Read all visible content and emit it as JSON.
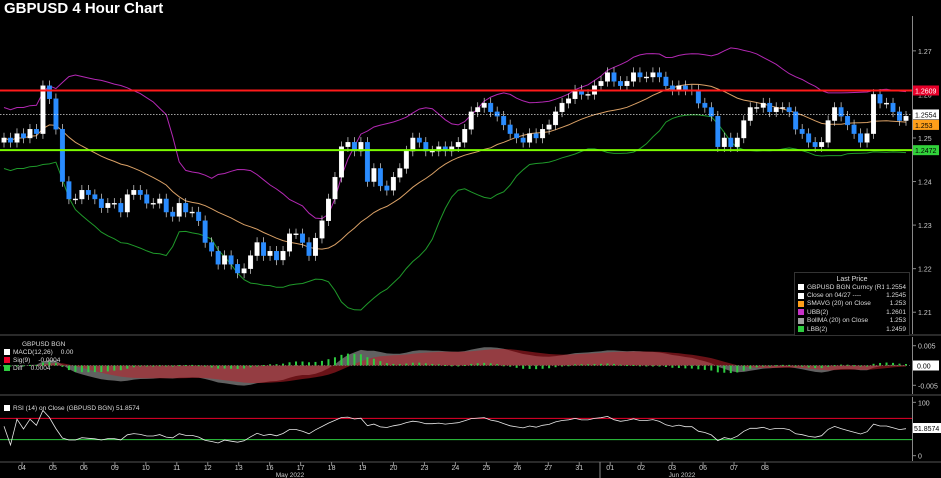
{
  "chart_data": [
    {
      "type": "candlestick",
      "title": "GBPUSD 4 Hour Chart",
      "yticks": [
        "1.27",
        "1.26",
        "1.25",
        "1.24",
        "1.23",
        "1.22",
        "1.21"
      ],
      "ylim": [
        1.205,
        1.278
      ],
      "xticks": [
        "04",
        "05",
        "06",
        "09",
        "10",
        "11",
        "12",
        "13",
        "16",
        "17",
        "18",
        "19",
        "20",
        "23",
        "24",
        "25",
        "26",
        "27",
        "31",
        "01",
        "02",
        "03",
        "06",
        "07",
        "08"
      ],
      "month_labels": [
        "May 2022",
        "Jun 2022"
      ],
      "horizontal_levels": [
        {
          "name": "resistance",
          "value": 1.2609,
          "color": "#ff1a1a"
        },
        {
          "name": "support",
          "value": 1.2472,
          "color": "#7cfc00"
        }
      ],
      "price_tags": [
        {
          "label": "1.2609",
          "value": 1.2609,
          "color": "#e8002a"
        },
        {
          "label": "1.2554",
          "value": 1.2554,
          "color": "#ffffff"
        },
        {
          "label": "1.253",
          "value": 1.253,
          "color": "#ff9f1a"
        },
        {
          "label": "1.2472",
          "value": 1.2472,
          "color": "#31d13a"
        }
      ],
      "close": [
        1.25,
        1.249,
        1.251,
        1.25,
        1.252,
        1.251,
        1.262,
        1.259,
        1.252,
        1.24,
        1.236,
        1.236,
        1.238,
        1.237,
        1.236,
        1.234,
        1.235,
        1.235,
        1.233,
        1.237,
        1.238,
        1.237,
        1.235,
        1.235,
        1.236,
        1.233,
        1.232,
        1.235,
        1.233,
        1.233,
        1.231,
        1.226,
        1.224,
        1.221,
        1.223,
        1.221,
        1.219,
        1.22,
        1.223,
        1.226,
        1.223,
        1.224,
        1.222,
        1.224,
        1.228,
        1.228,
        1.226,
        1.223,
        1.227,
        1.231,
        1.236,
        1.241,
        1.248,
        1.249,
        1.247,
        1.249,
        1.24,
        1.243,
        1.239,
        1.238,
        1.241,
        1.243,
        1.247,
        1.25,
        1.249,
        1.247,
        1.247,
        1.248,
        1.247,
        1.248,
        1.249,
        1.252,
        1.256,
        1.257,
        1.258,
        1.256,
        1.255,
        1.253,
        1.251,
        1.25,
        1.249,
        1.251,
        1.25,
        1.252,
        1.253,
        1.256,
        1.258,
        1.259,
        1.261,
        1.26,
        1.26,
        1.262,
        1.263,
        1.265,
        1.263,
        1.262,
        1.263,
        1.265,
        1.264,
        1.264,
        1.265,
        1.264,
        1.262,
        1.261,
        1.262,
        1.261,
        1.261,
        1.258,
        1.257,
        1.255,
        1.248,
        1.25,
        1.248,
        1.25,
        1.254,
        1.257,
        1.257,
        1.258,
        1.256,
        1.257,
        1.257,
        1.256,
        1.252,
        1.251,
        1.249,
        1.248,
        1.249,
        1.254,
        1.257,
        1.255,
        1.253,
        1.251,
        1.249,
        1.251,
        1.26,
        1.258,
        1.258,
        1.256,
        1.254,
        1.255
      ],
      "bollinger": {
        "upper_last": 1.2601,
        "mid_last": 1.253,
        "lower_last": 1.2459
      },
      "legend_title": "Last Price",
      "legend": [
        {
          "name": "GBPUSD BGN Curncy  (R1)",
          "value": "1.2554",
          "color": "#ffffff"
        },
        {
          "name": "Close on 04/27  ----",
          "value": "1.2545",
          "color": "#ffffff"
        },
        {
          "name": "SMAVG (20)  on Close",
          "value": "1.253",
          "color": "#ff9f1a"
        },
        {
          "name": "UBB(2)",
          "value": "1.2601",
          "color": "#c832c8"
        },
        {
          "name": "BollMA (20)  on Close",
          "value": "1.253",
          "color": "#a0a0a0"
        },
        {
          "name": "LBB(2)",
          "value": "1.2459",
          "color": "#2ecc40"
        }
      ]
    },
    {
      "type": "area",
      "title": "GBPUSD BGN",
      "yticks": [
        "0.005",
        "0.00",
        "-0.005"
      ],
      "ylim": [
        -0.0072,
        0.0072
      ],
      "value_tag": "0.00",
      "series": [
        {
          "name": "MACD(12,26)",
          "value": "0.00",
          "color": "#ffffff"
        },
        {
          "name": "Sig(9)",
          "value": "-0.0004",
          "color": "#e8002a"
        },
        {
          "name": "Diff",
          "value": "0.0004",
          "color": "#2ecc40"
        }
      ]
    },
    {
      "type": "line",
      "title": "RSI (14)  on Close (GBPUSD BGN)",
      "last_value": "51.8574",
      "yticks": [
        "100",
        "50",
        "0"
      ],
      "ylim": [
        -10,
        110
      ],
      "levels": [
        {
          "value": 70,
          "color": "#e8002a"
        },
        {
          "value": 30,
          "color": "#2ecc40"
        }
      ]
    }
  ]
}
